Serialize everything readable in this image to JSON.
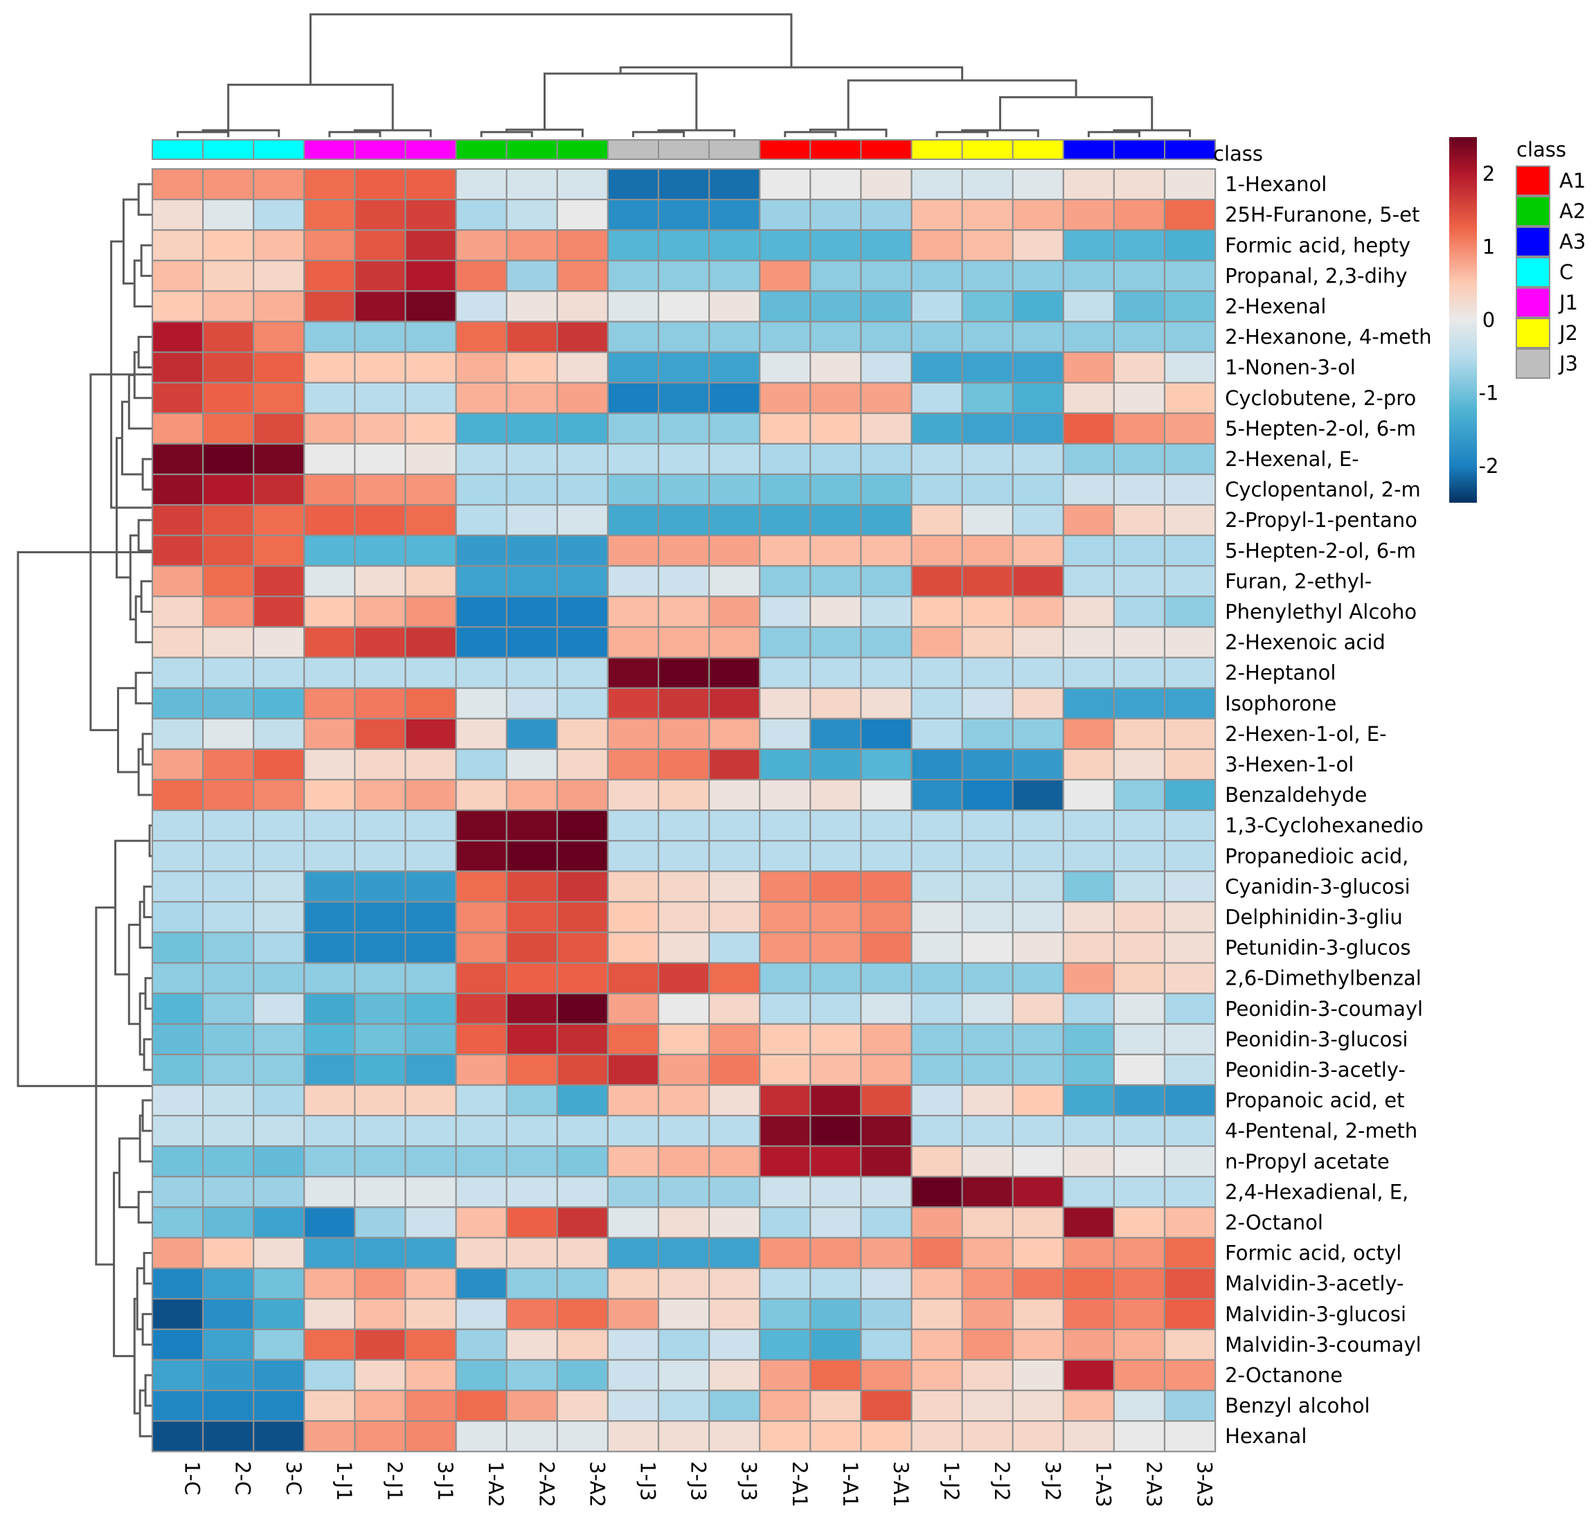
{
  "chart_data": {
    "type": "heatmap",
    "title": "",
    "columns": [
      "1-C",
      "2-C",
      "3-C",
      "1-J1",
      "2-J1",
      "3-J1",
      "1-A2",
      "2-A2",
      "3-A2",
      "1-J3",
      "2-J3",
      "3-J3",
      "2-A1",
      "1-A1",
      "3-A1",
      "1-J2",
      "2-J2",
      "3-J2",
      "1-A3",
      "2-A3",
      "3-A3"
    ],
    "column_class": [
      "C",
      "C",
      "C",
      "J1",
      "J1",
      "J1",
      "A2",
      "A2",
      "A2",
      "J3",
      "J3",
      "J3",
      "A1",
      "A1",
      "A1",
      "J2",
      "J2",
      "J2",
      "A3",
      "A3",
      "A3"
    ],
    "class_bar_label": "class",
    "classes": [
      {
        "name": "A1",
        "color": "#ff0000"
      },
      {
        "name": "A2",
        "color": "#00cc00"
      },
      {
        "name": "A3",
        "color": "#0000ff"
      },
      {
        "name": "C",
        "color": "#00ffff"
      },
      {
        "name": "J1",
        "color": "#ff00ff"
      },
      {
        "name": "J2",
        "color": "#ffff00"
      },
      {
        "name": "J3",
        "color": "#bebebe"
      }
    ],
    "legend_title": "class",
    "colorbar": {
      "min": -2.5,
      "max": 2.5,
      "ticks": [
        2,
        1,
        0,
        -1,
        -2
      ],
      "tick_labels": [
        "2",
        "1",
        "0",
        "-1",
        "-2"
      ]
    },
    "rows": [
      {
        "name": "1-Hexanol",
        "values": [
          0.9,
          0.9,
          0.9,
          1.2,
          1.3,
          1.3,
          -0.2,
          -0.2,
          -0.2,
          -2.1,
          -2.1,
          -2.1,
          0.0,
          0.0,
          0.1,
          -0.2,
          -0.2,
          -0.1,
          0.2,
          0.2,
          0.1
        ]
      },
      {
        "name": "25H-Furanone, 5-et",
        "values": [
          0.2,
          -0.1,
          -0.5,
          1.2,
          1.5,
          1.6,
          -0.6,
          -0.4,
          0.0,
          -1.8,
          -1.8,
          -1.8,
          -0.7,
          -0.7,
          -0.7,
          0.6,
          0.6,
          0.7,
          0.8,
          0.9,
          1.2
        ]
      },
      {
        "name": "Formic acid, hepty",
        "values": [
          0.4,
          0.5,
          0.6,
          1.0,
          1.4,
          1.8,
          0.8,
          0.9,
          1.0,
          -1.2,
          -1.2,
          -1.2,
          -1.2,
          -1.2,
          -1.2,
          0.7,
          0.6,
          0.3,
          -1.2,
          -1.2,
          -1.3
        ]
      },
      {
        "name": "Propanal, 2,3-dihy",
        "values": [
          0.6,
          0.4,
          0.3,
          1.3,
          1.7,
          2.0,
          1.1,
          -0.7,
          1.0,
          -0.8,
          -0.8,
          -0.8,
          0.9,
          -0.8,
          -0.8,
          -0.8,
          -0.8,
          -0.8,
          -0.8,
          -0.8,
          -0.8
        ]
      },
      {
        "name": "2-Hexenal",
        "values": [
          0.5,
          0.6,
          0.7,
          1.5,
          2.2,
          2.4,
          -0.3,
          0.1,
          0.2,
          -0.1,
          0.0,
          0.1,
          -1.1,
          -1.1,
          -1.1,
          -0.5,
          -1.0,
          -1.3,
          -0.4,
          -1.1,
          -1.0
        ]
      },
      {
        "name": "2-Hexanone, 4-meth",
        "values": [
          2.0,
          1.5,
          1.0,
          -0.8,
          -0.8,
          -0.8,
          1.2,
          1.5,
          1.7,
          -0.8,
          -0.8,
          -0.8,
          -0.8,
          -0.8,
          -0.8,
          -0.8,
          -0.8,
          -0.8,
          -0.8,
          -0.8,
          -0.8
        ]
      },
      {
        "name": "1-Nonen-3-ol",
        "values": [
          1.8,
          1.5,
          1.3,
          0.5,
          0.5,
          0.5,
          0.7,
          0.5,
          0.2,
          -1.5,
          -1.5,
          -1.5,
          -0.1,
          0.1,
          -0.3,
          -1.5,
          -1.5,
          -1.5,
          0.8,
          0.3,
          -0.2
        ]
      },
      {
        "name": "Cyclobutene, 2-pro",
        "values": [
          1.6,
          1.3,
          1.2,
          -0.5,
          -0.5,
          -0.5,
          0.7,
          0.7,
          0.8,
          -2.0,
          -1.9,
          -2.0,
          0.8,
          0.8,
          0.8,
          -0.5,
          -1.0,
          -1.3,
          0.2,
          0.1,
          0.5
        ]
      },
      {
        "name": "5-Hepten-2-ol, 6-m",
        "values": [
          0.9,
          1.2,
          1.5,
          0.7,
          0.6,
          0.5,
          -1.3,
          -1.3,
          -1.3,
          -0.8,
          -0.8,
          -0.8,
          0.5,
          0.5,
          0.3,
          -1.4,
          -1.5,
          -1.5,
          1.3,
          0.9,
          0.8
        ]
      },
      {
        "name": "2-Hexenal, E-",
        "values": [
          2.4,
          2.5,
          2.4,
          0.0,
          0.0,
          0.1,
          -0.5,
          -0.5,
          -0.5,
          -0.5,
          -0.5,
          -0.5,
          -0.6,
          -0.6,
          -0.6,
          -0.5,
          -0.5,
          -0.5,
          -0.8,
          -0.8,
          -0.8
        ]
      },
      {
        "name": "Cyclopentanol, 2-m",
        "values": [
          2.2,
          2.0,
          1.8,
          1.0,
          0.9,
          0.9,
          -0.6,
          -0.6,
          -0.6,
          -0.9,
          -0.9,
          -0.9,
          -1.0,
          -1.0,
          -1.0,
          -0.6,
          -0.6,
          -0.6,
          -0.3,
          -0.3,
          -0.3
        ]
      },
      {
        "name": "2-Propyl-1-pentano",
        "values": [
          1.6,
          1.4,
          1.2,
          1.3,
          1.3,
          1.2,
          -0.5,
          -0.3,
          -0.2,
          -1.4,
          -1.4,
          -1.4,
          -1.4,
          -1.4,
          -1.4,
          0.4,
          -0.1,
          -0.5,
          0.8,
          0.3,
          0.2
        ]
      },
      {
        "name": "5-Hepten-2-ol, 6-m",
        "values": [
          1.6,
          1.4,
          1.2,
          -1.2,
          -1.2,
          -1.2,
          -1.6,
          -1.6,
          -1.6,
          0.8,
          0.8,
          0.8,
          0.6,
          0.6,
          0.6,
          0.7,
          0.7,
          0.6,
          -0.6,
          -0.6,
          -0.6
        ]
      },
      {
        "name": "Furan, 2-ethyl-",
        "values": [
          0.8,
          1.2,
          1.6,
          -0.1,
          0.2,
          0.4,
          -1.5,
          -1.5,
          -1.5,
          -0.3,
          -0.3,
          -0.1,
          -0.8,
          -0.8,
          -0.8,
          1.5,
          1.5,
          1.6,
          -0.5,
          -0.5,
          -0.5
        ]
      },
      {
        "name": "Phenylethyl Alcoho",
        "values": [
          0.3,
          0.9,
          1.6,
          0.5,
          0.7,
          0.9,
          -2.0,
          -2.0,
          -2.0,
          0.6,
          0.6,
          0.8,
          -0.3,
          0.1,
          -0.4,
          0.5,
          0.5,
          0.6,
          0.2,
          -0.6,
          -0.8
        ]
      },
      {
        "name": "2-Hexenoic acid",
        "values": [
          0.3,
          0.2,
          0.1,
          1.4,
          1.6,
          1.7,
          -2.0,
          -2.0,
          -2.0,
          0.7,
          0.7,
          0.7,
          -0.8,
          -0.8,
          -0.8,
          0.7,
          0.4,
          0.2,
          0.1,
          0.1,
          0.1
        ]
      },
      {
        "name": "2-Heptanol",
        "values": [
          -0.5,
          -0.5,
          -0.5,
          -0.5,
          -0.5,
          -0.5,
          -0.5,
          -0.5,
          -0.5,
          2.4,
          2.5,
          2.5,
          -0.5,
          -0.5,
          -0.5,
          -0.5,
          -0.5,
          -0.5,
          -0.5,
          -0.5,
          -0.5
        ]
      },
      {
        "name": "Isophorone",
        "values": [
          -1.1,
          -1.1,
          -1.2,
          1.0,
          1.1,
          1.2,
          -0.1,
          -0.3,
          -0.5,
          1.6,
          1.7,
          1.8,
          0.2,
          0.3,
          0.2,
          -0.5,
          -0.3,
          0.3,
          -1.5,
          -1.5,
          -1.5
        ]
      },
      {
        "name": "2-Hexen-1-ol, E-",
        "values": [
          -0.4,
          -0.1,
          -0.4,
          0.8,
          1.4,
          1.9,
          0.2,
          -1.7,
          0.4,
          0.8,
          0.8,
          0.7,
          -0.3,
          -1.8,
          -2.0,
          -0.5,
          -0.8,
          -0.8,
          0.9,
          0.4,
          0.4
        ]
      },
      {
        "name": "3-Hexen-1-ol",
        "values": [
          0.8,
          1.1,
          1.3,
          0.2,
          0.3,
          0.3,
          -0.6,
          -0.1,
          0.3,
          1.0,
          1.1,
          1.7,
          -1.3,
          -1.4,
          -1.2,
          -1.8,
          -1.7,
          -1.6,
          0.4,
          0.2,
          0.4
        ]
      },
      {
        "name": "Benzaldehyde",
        "values": [
          1.2,
          1.1,
          1.0,
          0.5,
          0.7,
          0.8,
          0.4,
          0.7,
          0.8,
          0.3,
          0.4,
          0.1,
          0.1,
          0.2,
          0.0,
          -1.8,
          -2.0,
          -2.2,
          0.0,
          -0.8,
          -1.3
        ]
      },
      {
        "name": "1,3-Cyclohexanedio",
        "values": [
          -0.5,
          -0.5,
          -0.5,
          -0.5,
          -0.5,
          -0.5,
          2.4,
          2.4,
          2.6,
          -0.5,
          -0.5,
          -0.5,
          -0.5,
          -0.5,
          -0.5,
          -0.5,
          -0.5,
          -0.5,
          -0.5,
          -0.5,
          -0.5
        ]
      },
      {
        "name": "Propanedioic acid,",
        "values": [
          -0.5,
          -0.5,
          -0.5,
          -0.5,
          -0.5,
          -0.5,
          2.4,
          2.5,
          2.5,
          -0.5,
          -0.5,
          -0.5,
          -0.5,
          -0.5,
          -0.5,
          -0.5,
          -0.5,
          -0.5,
          -0.5,
          -0.5,
          -0.5
        ]
      },
      {
        "name": "Cyanidin-3-glucosi",
        "values": [
          -0.5,
          -0.5,
          -0.4,
          -1.6,
          -1.6,
          -1.6,
          1.2,
          1.5,
          1.7,
          0.4,
          0.3,
          0.2,
          1.0,
          1.1,
          1.1,
          -0.4,
          -0.4,
          -0.4,
          -0.9,
          -0.4,
          -0.3
        ]
      },
      {
        "name": "Delphinidin-3-gliu",
        "values": [
          -0.6,
          -0.5,
          -0.4,
          -1.9,
          -1.9,
          -1.9,
          1.0,
          1.4,
          1.5,
          0.5,
          0.3,
          0.3,
          0.9,
          0.9,
          1.0,
          -0.1,
          -0.2,
          -0.2,
          0.2,
          0.3,
          0.2
        ]
      },
      {
        "name": "Petunidin-3-glucos",
        "values": [
          -1.0,
          -0.8,
          -0.6,
          -1.9,
          -1.9,
          -1.9,
          1.0,
          1.5,
          1.4,
          0.5,
          0.2,
          -0.5,
          0.9,
          0.9,
          1.1,
          -0.1,
          0.0,
          0.1,
          0.3,
          0.3,
          0.2
        ]
      },
      {
        "name": "2,6-Dimethylbenzal",
        "values": [
          -0.8,
          -0.8,
          -0.8,
          -0.8,
          -0.8,
          -0.8,
          1.4,
          1.3,
          1.3,
          1.4,
          1.6,
          1.2,
          -0.8,
          -0.8,
          -0.8,
          -0.8,
          -0.8,
          -0.8,
          0.8,
          0.4,
          0.3
        ]
      },
      {
        "name": "Peonidin-3-coumayl",
        "values": [
          -1.2,
          -0.8,
          -0.3,
          -1.4,
          -1.1,
          -1.2,
          1.6,
          2.2,
          2.6,
          0.8,
          0.0,
          0.3,
          -0.5,
          -0.5,
          -0.2,
          -0.5,
          -0.2,
          0.3,
          -0.6,
          -0.1,
          -0.6
        ]
      },
      {
        "name": "Peonidin-3-glucosi",
        "values": [
          -1.1,
          -0.9,
          -0.8,
          -1.2,
          -1.0,
          -1.1,
          1.3,
          1.9,
          1.8,
          1.2,
          0.5,
          0.9,
          0.5,
          0.5,
          0.7,
          -0.8,
          -0.8,
          -0.8,
          -1.0,
          -0.2,
          -0.2
        ]
      },
      {
        "name": "Peonidin-3-acetly-",
        "values": [
          -1.0,
          -0.8,
          -0.8,
          -1.5,
          -1.3,
          -1.5,
          0.8,
          1.2,
          1.5,
          1.8,
          0.8,
          1.1,
          0.5,
          0.6,
          0.7,
          -0.8,
          -0.8,
          -0.8,
          -1.0,
          0.0,
          -0.4
        ]
      },
      {
        "name": "Propanoic acid, et",
        "values": [
          -0.3,
          -0.4,
          -0.6,
          0.4,
          0.4,
          0.4,
          -0.5,
          -0.8,
          -1.4,
          0.6,
          0.6,
          0.2,
          1.8,
          2.2,
          1.5,
          -0.3,
          0.2,
          0.5,
          -1.4,
          -1.6,
          -1.7
        ]
      },
      {
        "name": "4-Pentenal, 2-meth",
        "values": [
          -0.4,
          -0.4,
          -0.4,
          -0.5,
          -0.5,
          -0.5,
          -0.5,
          -0.5,
          -0.5,
          -0.5,
          -0.5,
          -0.5,
          2.3,
          2.6,
          2.3,
          -0.5,
          -0.5,
          -0.5,
          -0.5,
          -0.5,
          -0.5
        ]
      },
      {
        "name": "n-Propyl acetate",
        "values": [
          -1.0,
          -1.0,
          -1.1,
          -0.8,
          -0.8,
          -0.8,
          -0.8,
          -0.8,
          -0.9,
          0.6,
          0.7,
          0.7,
          2.0,
          2.0,
          2.2,
          0.4,
          0.1,
          0.0,
          0.1,
          0.0,
          -0.1
        ]
      },
      {
        "name": "2,4-Hexadienal, E,",
        "values": [
          -0.7,
          -0.7,
          -0.7,
          -0.1,
          -0.1,
          -0.1,
          -0.3,
          -0.3,
          -0.3,
          -0.7,
          -0.7,
          -0.7,
          -0.3,
          -0.3,
          -0.3,
          2.5,
          2.3,
          2.1,
          -0.5,
          -0.5,
          -0.5
        ]
      },
      {
        "name": "2-Octanol",
        "values": [
          -0.9,
          -1.1,
          -1.5,
          -2.0,
          -0.7,
          -0.3,
          0.6,
          1.3,
          1.7,
          -0.1,
          0.2,
          0.1,
          -0.6,
          -0.3,
          -0.6,
          0.8,
          0.4,
          0.4,
          2.2,
          0.5,
          0.6
        ]
      },
      {
        "name": "Formic acid, octyl",
        "values": [
          0.8,
          0.5,
          0.2,
          -1.5,
          -1.5,
          -1.5,
          0.3,
          0.3,
          0.3,
          -1.5,
          -1.5,
          -1.5,
          0.9,
          0.9,
          0.8,
          1.1,
          0.7,
          0.5,
          0.9,
          0.9,
          1.2
        ]
      },
      {
        "name": "Malvidin-3-acetly-",
        "values": [
          -1.9,
          -1.5,
          -1.0,
          0.7,
          0.9,
          0.6,
          -1.8,
          -0.8,
          -0.8,
          0.4,
          0.3,
          0.3,
          -0.5,
          -0.5,
          -0.3,
          0.6,
          0.9,
          1.1,
          1.2,
          1.1,
          1.4
        ]
      },
      {
        "name": "Malvidin-3-glucosi",
        "values": [
          -2.3,
          -1.8,
          -1.4,
          0.2,
          0.6,
          0.4,
          -0.3,
          1.1,
          1.2,
          0.8,
          0.1,
          0.3,
          -0.9,
          -1.1,
          -0.7,
          0.4,
          0.8,
          0.4,
          1.1,
          1.0,
          1.3
        ]
      },
      {
        "name": "Malvidin-3-coumayl",
        "values": [
          -2.0,
          -1.5,
          -0.8,
          1.2,
          1.5,
          1.2,
          -0.7,
          0.2,
          0.4,
          -0.3,
          -0.6,
          -0.3,
          -1.2,
          -1.4,
          -0.6,
          0.6,
          0.9,
          0.6,
          0.8,
          0.7,
          0.4
        ]
      },
      {
        "name": "2-Octanone",
        "values": [
          -1.5,
          -1.6,
          -1.7,
          -0.6,
          0.3,
          0.6,
          -1.0,
          -0.8,
          -1.0,
          -0.3,
          -0.2,
          0.2,
          0.8,
          1.2,
          0.9,
          0.6,
          0.3,
          0.1,
          2.0,
          0.9,
          0.9
        ]
      },
      {
        "name": "Benzyl alcohol",
        "values": [
          -1.9,
          -1.9,
          -1.9,
          0.4,
          0.7,
          1.0,
          1.2,
          0.8,
          0.3,
          -0.3,
          -0.5,
          -0.8,
          0.7,
          0.4,
          1.4,
          0.3,
          0.2,
          0.2,
          0.6,
          -0.2,
          -0.7
        ]
      },
      {
        "name": "Hexanal",
        "values": [
          -2.3,
          -2.3,
          -2.3,
          0.8,
          0.9,
          1.0,
          -0.1,
          -0.1,
          -0.1,
          0.2,
          0.2,
          0.2,
          0.5,
          0.5,
          0.5,
          0.3,
          0.3,
          0.3,
          0.2,
          0.0,
          0.0
        ]
      }
    ]
  }
}
